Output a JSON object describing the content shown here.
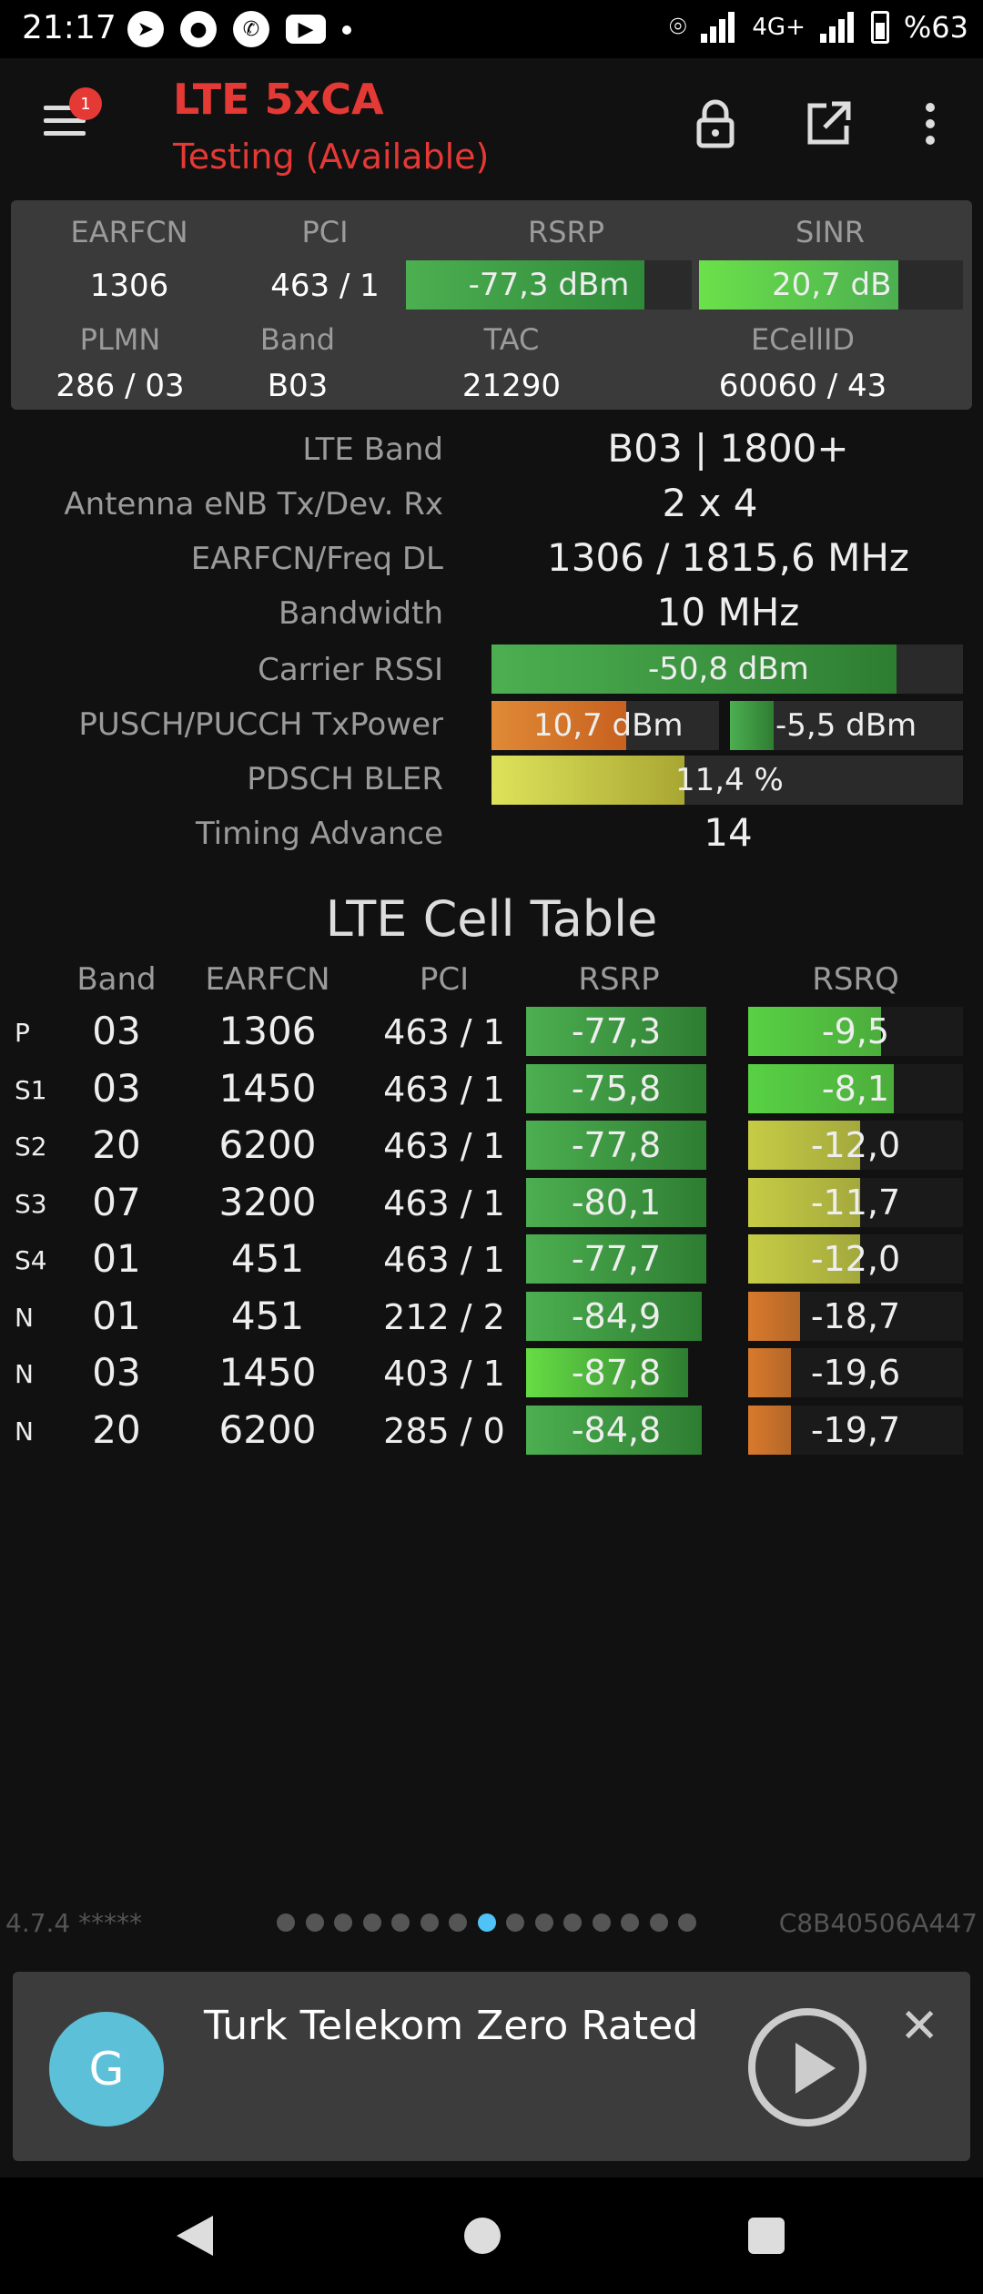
{
  "status_bar": {
    "time": "21:17",
    "network": "4G+",
    "battery": "%63",
    "icons": [
      "telegram-icon",
      "chat-icon",
      "whatsapp-icon",
      "youtube-icon",
      "dot-icon",
      "location-icon",
      "signal-icon",
      "signal-icon",
      "battery-icon"
    ]
  },
  "app_bar": {
    "title": "LTE 5xCA",
    "subtitle": "Testing (Available)",
    "badge": "1",
    "icons": [
      "menu-icon",
      "lock-icon",
      "open-external-icon",
      "more-vert-icon"
    ]
  },
  "summary": {
    "headers": {
      "earfcn": "EARFCN",
      "pci": "PCI",
      "rsrp": "RSRP",
      "sinr": "SINR",
      "plmn": "PLMN",
      "band": "Band",
      "tac": "TAC",
      "ecellid": "ECellID"
    },
    "earfcn": "1306",
    "pci": "463 / 1",
    "rsrp": {
      "text": "-77,3 dBm",
      "level": 0.8
    },
    "sinr": {
      "text": "20,7 dB",
      "level": 0.75
    },
    "plmn": "286 / 03",
    "band": "B03",
    "tac": "21290",
    "ecellid": "60060 / 43"
  },
  "details": [
    {
      "label": "LTE Band",
      "value": "B03 | 1800+"
    },
    {
      "label": "Antenna eNB Tx/Dev. Rx",
      "value": "2 x 4"
    },
    {
      "label": "EARFCN/Freq DL",
      "value": "1306 / 1815,6 MHz"
    },
    {
      "label": "Bandwidth",
      "value": "10 MHz"
    },
    {
      "label": "Carrier RSSI",
      "value": "-50,8 dBm",
      "level": 0.86
    },
    {
      "label": "PUSCH/PUCCH TxPower",
      "pusch": "10,7 dBm",
      "pusch_level": 0.59,
      "pucch": "-5,5 dBm",
      "pucch_level": 0.3
    },
    {
      "label": "PDSCH BLER",
      "value": "11,4 %",
      "level": 0.41
    },
    {
      "label": "Timing Advance",
      "value": "14"
    }
  ],
  "cell_table": {
    "title": "LTE Cell Table",
    "headers": [
      "Band",
      "EARFCN",
      "PCI",
      "RSRP",
      "RSRQ"
    ],
    "rows": [
      {
        "type": "P",
        "band": "03",
        "earfcn": "1306",
        "pci": "463 / 1",
        "rsrp": "-77,3",
        "rsrp_level": 0.8,
        "rsrq": "-9,5",
        "rsrq_level": 0.62,
        "rsrq_color": "#58d144"
      },
      {
        "type": "S1",
        "band": "03",
        "earfcn": "1450",
        "pci": "463 / 1",
        "rsrp": "-75,8",
        "rsrp_level": 0.8,
        "rsrq": "-8,1",
        "rsrq_level": 0.68,
        "rsrq_color": "#58d144"
      },
      {
        "type": "S2",
        "band": "20",
        "earfcn": "6200",
        "pci": "463 / 1",
        "rsrp": "-77,8",
        "rsrp_level": 0.8,
        "rsrq": "-12,0",
        "rsrq_level": 0.52,
        "rsrq_color": "#c6cc45"
      },
      {
        "type": "S3",
        "band": "07",
        "earfcn": "3200",
        "pci": "463 / 1",
        "rsrp": "-80,1",
        "rsrp_level": 0.8,
        "rsrq": "-11,7",
        "rsrq_level": 0.52,
        "rsrq_color": "#c6cc45"
      },
      {
        "type": "S4",
        "band": "01",
        "earfcn": "451",
        "pci": "463 / 1",
        "rsrp": "-77,7",
        "rsrp_level": 0.8,
        "rsrq": "-12,0",
        "rsrq_level": 0.52,
        "rsrq_color": "#c6cc45"
      },
      {
        "type": "N",
        "band": "01",
        "earfcn": "451",
        "pci": "212 / 2",
        "rsrp": "-84,9",
        "rsrp_level": 0.78,
        "rsrq": "-18,7",
        "rsrq_level": 0.24,
        "rsrq_color": "#d97a2c"
      },
      {
        "type": "N",
        "band": "03",
        "earfcn": "1450",
        "pci": "403 / 1",
        "rsrp": "-87,8",
        "rsrp_level": 0.72,
        "rsrq": "-19,6",
        "rsrq_level": 0.2,
        "rsrq_color": "#d97a2c"
      },
      {
        "type": "N",
        "band": "20",
        "earfcn": "6200",
        "pci": "285 / 0",
        "rsrp": "-84,8",
        "rsrp_level": 0.78,
        "rsrq": "-19,7",
        "rsrq_level": 0.2,
        "rsrq_color": "#d97a2c"
      }
    ]
  },
  "footer": {
    "version": "4.7.4 *****",
    "device_id": "C8B40506A447",
    "page_count": 15,
    "active_page": 8
  },
  "ad": {
    "avatar_letter": "G",
    "text": "Turk Telekom Zero Rated"
  },
  "colors": {
    "accent_red": "#e53935",
    "green": "#4caf50",
    "bright_green": "#66dd44",
    "yellow": "#c6cc45",
    "orange": "#d97a2c",
    "page_dot_active": "#4fc3f7"
  }
}
